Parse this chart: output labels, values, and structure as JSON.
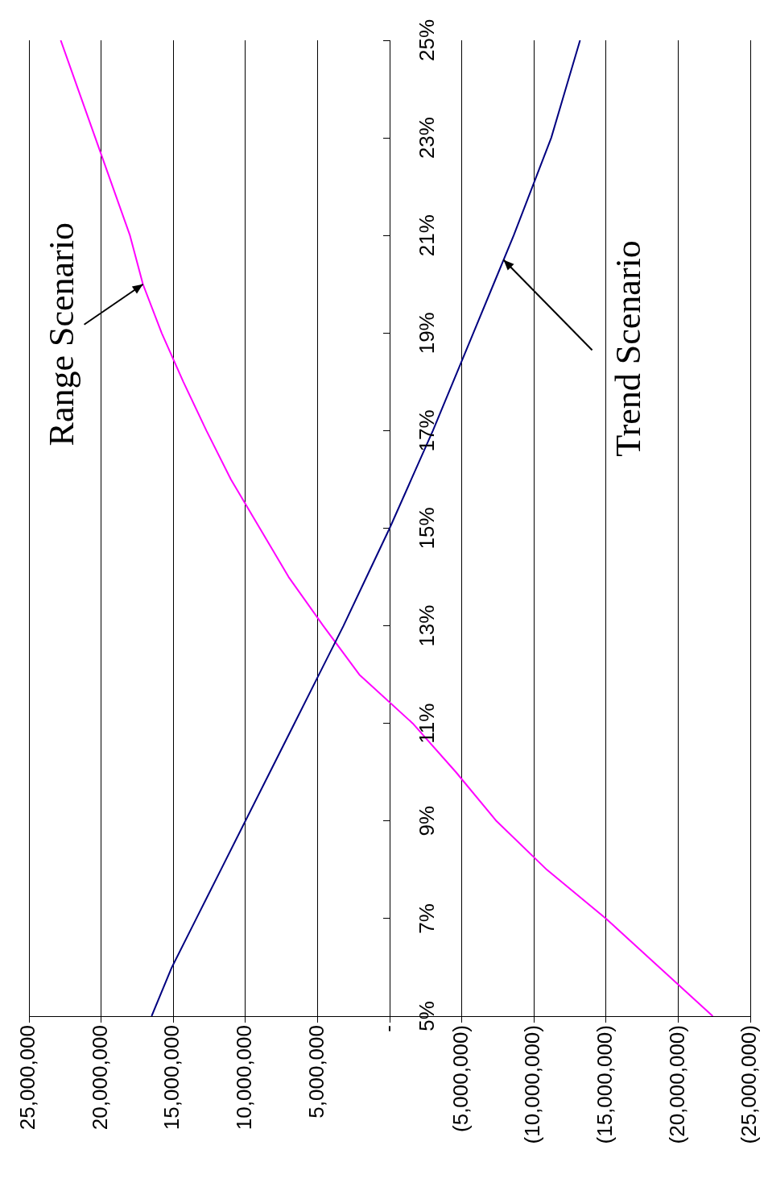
{
  "chart_data": {
    "type": "line",
    "orientation": "horizontal",
    "x": [
      5,
      6,
      7,
      8,
      9,
      10,
      11,
      12,
      13,
      14,
      15,
      16,
      17,
      18,
      19,
      20,
      21,
      22,
      23,
      24,
      25
    ],
    "series": [
      {
        "color": "#000080",
        "values": [
          16500000,
          15100000,
          13400000,
          11700000,
          10000000,
          8300000,
          6600000,
          4900000,
          3200000,
          1600000,
          0,
          -1500000,
          -3000000,
          -4400000,
          -5800000,
          -7200000,
          -8600000,
          -9900000,
          -11200000,
          -12200000,
          -13200000
        ]
      },
      {
        "color": "#ff00ff",
        "values": [
          -22400000,
          -18700000,
          -15000000,
          -10900000,
          -7400000,
          -4600000,
          -1600000,
          2100000,
          4600000,
          7000000,
          9000000,
          11000000,
          12700000,
          14300000,
          15800000,
          17100000,
          18000000,
          19200000,
          20400000,
          21600000,
          22800000
        ]
      }
    ],
    "ylim": [
      5,
      25
    ],
    "yticks": [
      {
        "value": 5,
        "label": "5%"
      },
      {
        "value": 7,
        "label": "7%"
      },
      {
        "value": 9,
        "label": "9%"
      },
      {
        "value": 11,
        "label": "11%"
      },
      {
        "value": 13,
        "label": "13%"
      },
      {
        "value": 15,
        "label": "15%"
      },
      {
        "value": 17,
        "label": "17%"
      },
      {
        "value": 19,
        "label": "19%"
      },
      {
        "value": 21,
        "label": "21%"
      },
      {
        "value": 23,
        "label": "23%"
      },
      {
        "value": 25,
        "label": "25%"
      }
    ],
    "xlim": [
      25000000,
      -25000000
    ],
    "xticks": [
      {
        "value": -25000000,
        "label": "(25,000,000)"
      },
      {
        "value": -20000000,
        "label": "(20,000,000)"
      },
      {
        "value": -15000000,
        "label": "(15,000,000)"
      },
      {
        "value": -10000000,
        "label": "(10,000,000)"
      },
      {
        "value": -5000000,
        "label": "(5,000,000)"
      },
      {
        "value": 0,
        "label": "-"
      },
      {
        "value": 5000000,
        "label": "5,000,000"
      },
      {
        "value": 10000000,
        "label": "10,000,000"
      },
      {
        "value": 15000000,
        "label": "15,000,000"
      },
      {
        "value": 20000000,
        "label": "20,000,000"
      },
      {
        "value": 25000000,
        "label": "25,000,000"
      }
    ],
    "grid": "x",
    "legend": false,
    "annotations": [
      {
        "text": "Range Scenario",
        "x": 17100000,
        "y": 20
      },
      {
        "text": "Trend Scenario",
        "x": -7900000,
        "y": 20.5
      }
    ]
  }
}
